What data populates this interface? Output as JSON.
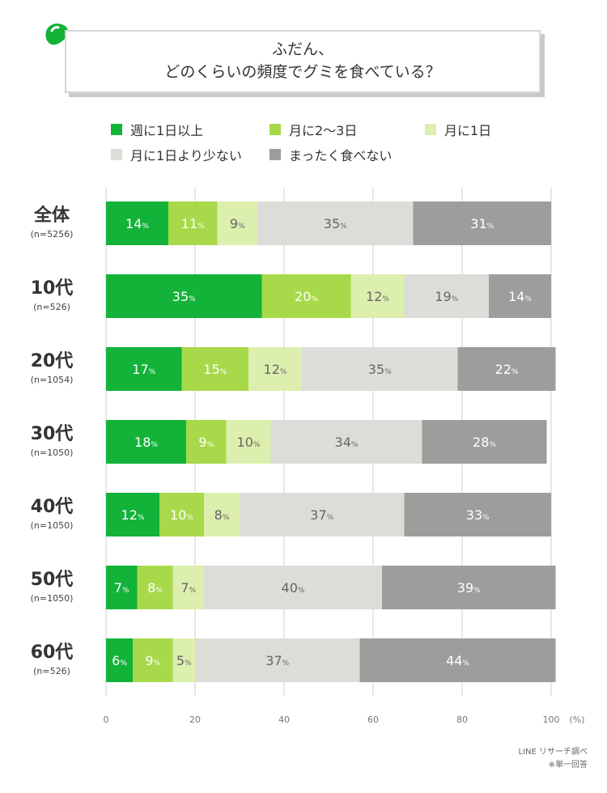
{
  "title": {
    "line1": "ふだん、",
    "line2": "どのくらいの頻度でグミを食べている？"
  },
  "colors": {
    "weekly": "#13b33a",
    "monthly23": "#a8d94a",
    "monthly1": "#dcefae",
    "less": "#dcdcd9",
    "never": "#9d9d9b",
    "grid": "#cfcfcf",
    "deco_green": "#13b33a"
  },
  "legend": [
    {
      "label": "週に1日以上",
      "color": "#13b33a"
    },
    {
      "label": "月に2〜3日",
      "color": "#a8d94a"
    },
    {
      "label": "月に1日",
      "color": "#dcefae"
    },
    {
      "label": "月に1日より少ない",
      "color": "#dcdcd9"
    },
    {
      "label": "まったく食べない",
      "color": "#9d9d9b"
    }
  ],
  "chart_data": {
    "type": "bar",
    "orientation": "horizontal",
    "stacked": true,
    "title": "ふだん、どのくらいの頻度でグミを食べている？",
    "xlabel": "(%)",
    "ylabel": "",
    "xlim": [
      0,
      100
    ],
    "xticks": [
      "0",
      "20",
      "40",
      "60",
      "80",
      "100"
    ],
    "percent_unit": "%",
    "categories": [
      "全体",
      "10代",
      "20代",
      "30代",
      "40代",
      "50代",
      "60代"
    ],
    "sample_sizes": [
      "(n=5256)",
      "(n=526)",
      "(n=1054)",
      "(n=1050)",
      "(n=1050)",
      "(n=1050)",
      "(n=526)"
    ],
    "series": [
      {
        "name": "週に1日以上",
        "values": [
          14,
          35,
          17,
          18,
          12,
          7,
          6
        ],
        "label_color": "#ffffff"
      },
      {
        "name": "月に2〜3日",
        "values": [
          11,
          20,
          15,
          9,
          10,
          8,
          9
        ],
        "label_color": "#ffffff"
      },
      {
        "name": "月に1日",
        "values": [
          9,
          12,
          12,
          10,
          8,
          7,
          5
        ],
        "label_color": "#666666"
      },
      {
        "name": "月に1日より少ない",
        "values": [
          35,
          19,
          35,
          34,
          37,
          40,
          37
        ],
        "label_color": "#666666"
      },
      {
        "name": "まったく食べない",
        "values": [
          31,
          14,
          22,
          28,
          33,
          39,
          44
        ],
        "label_color": "#ffffff"
      }
    ]
  },
  "footer": {
    "source": "LINE リサーチ調べ",
    "note": "※単一回答"
  }
}
